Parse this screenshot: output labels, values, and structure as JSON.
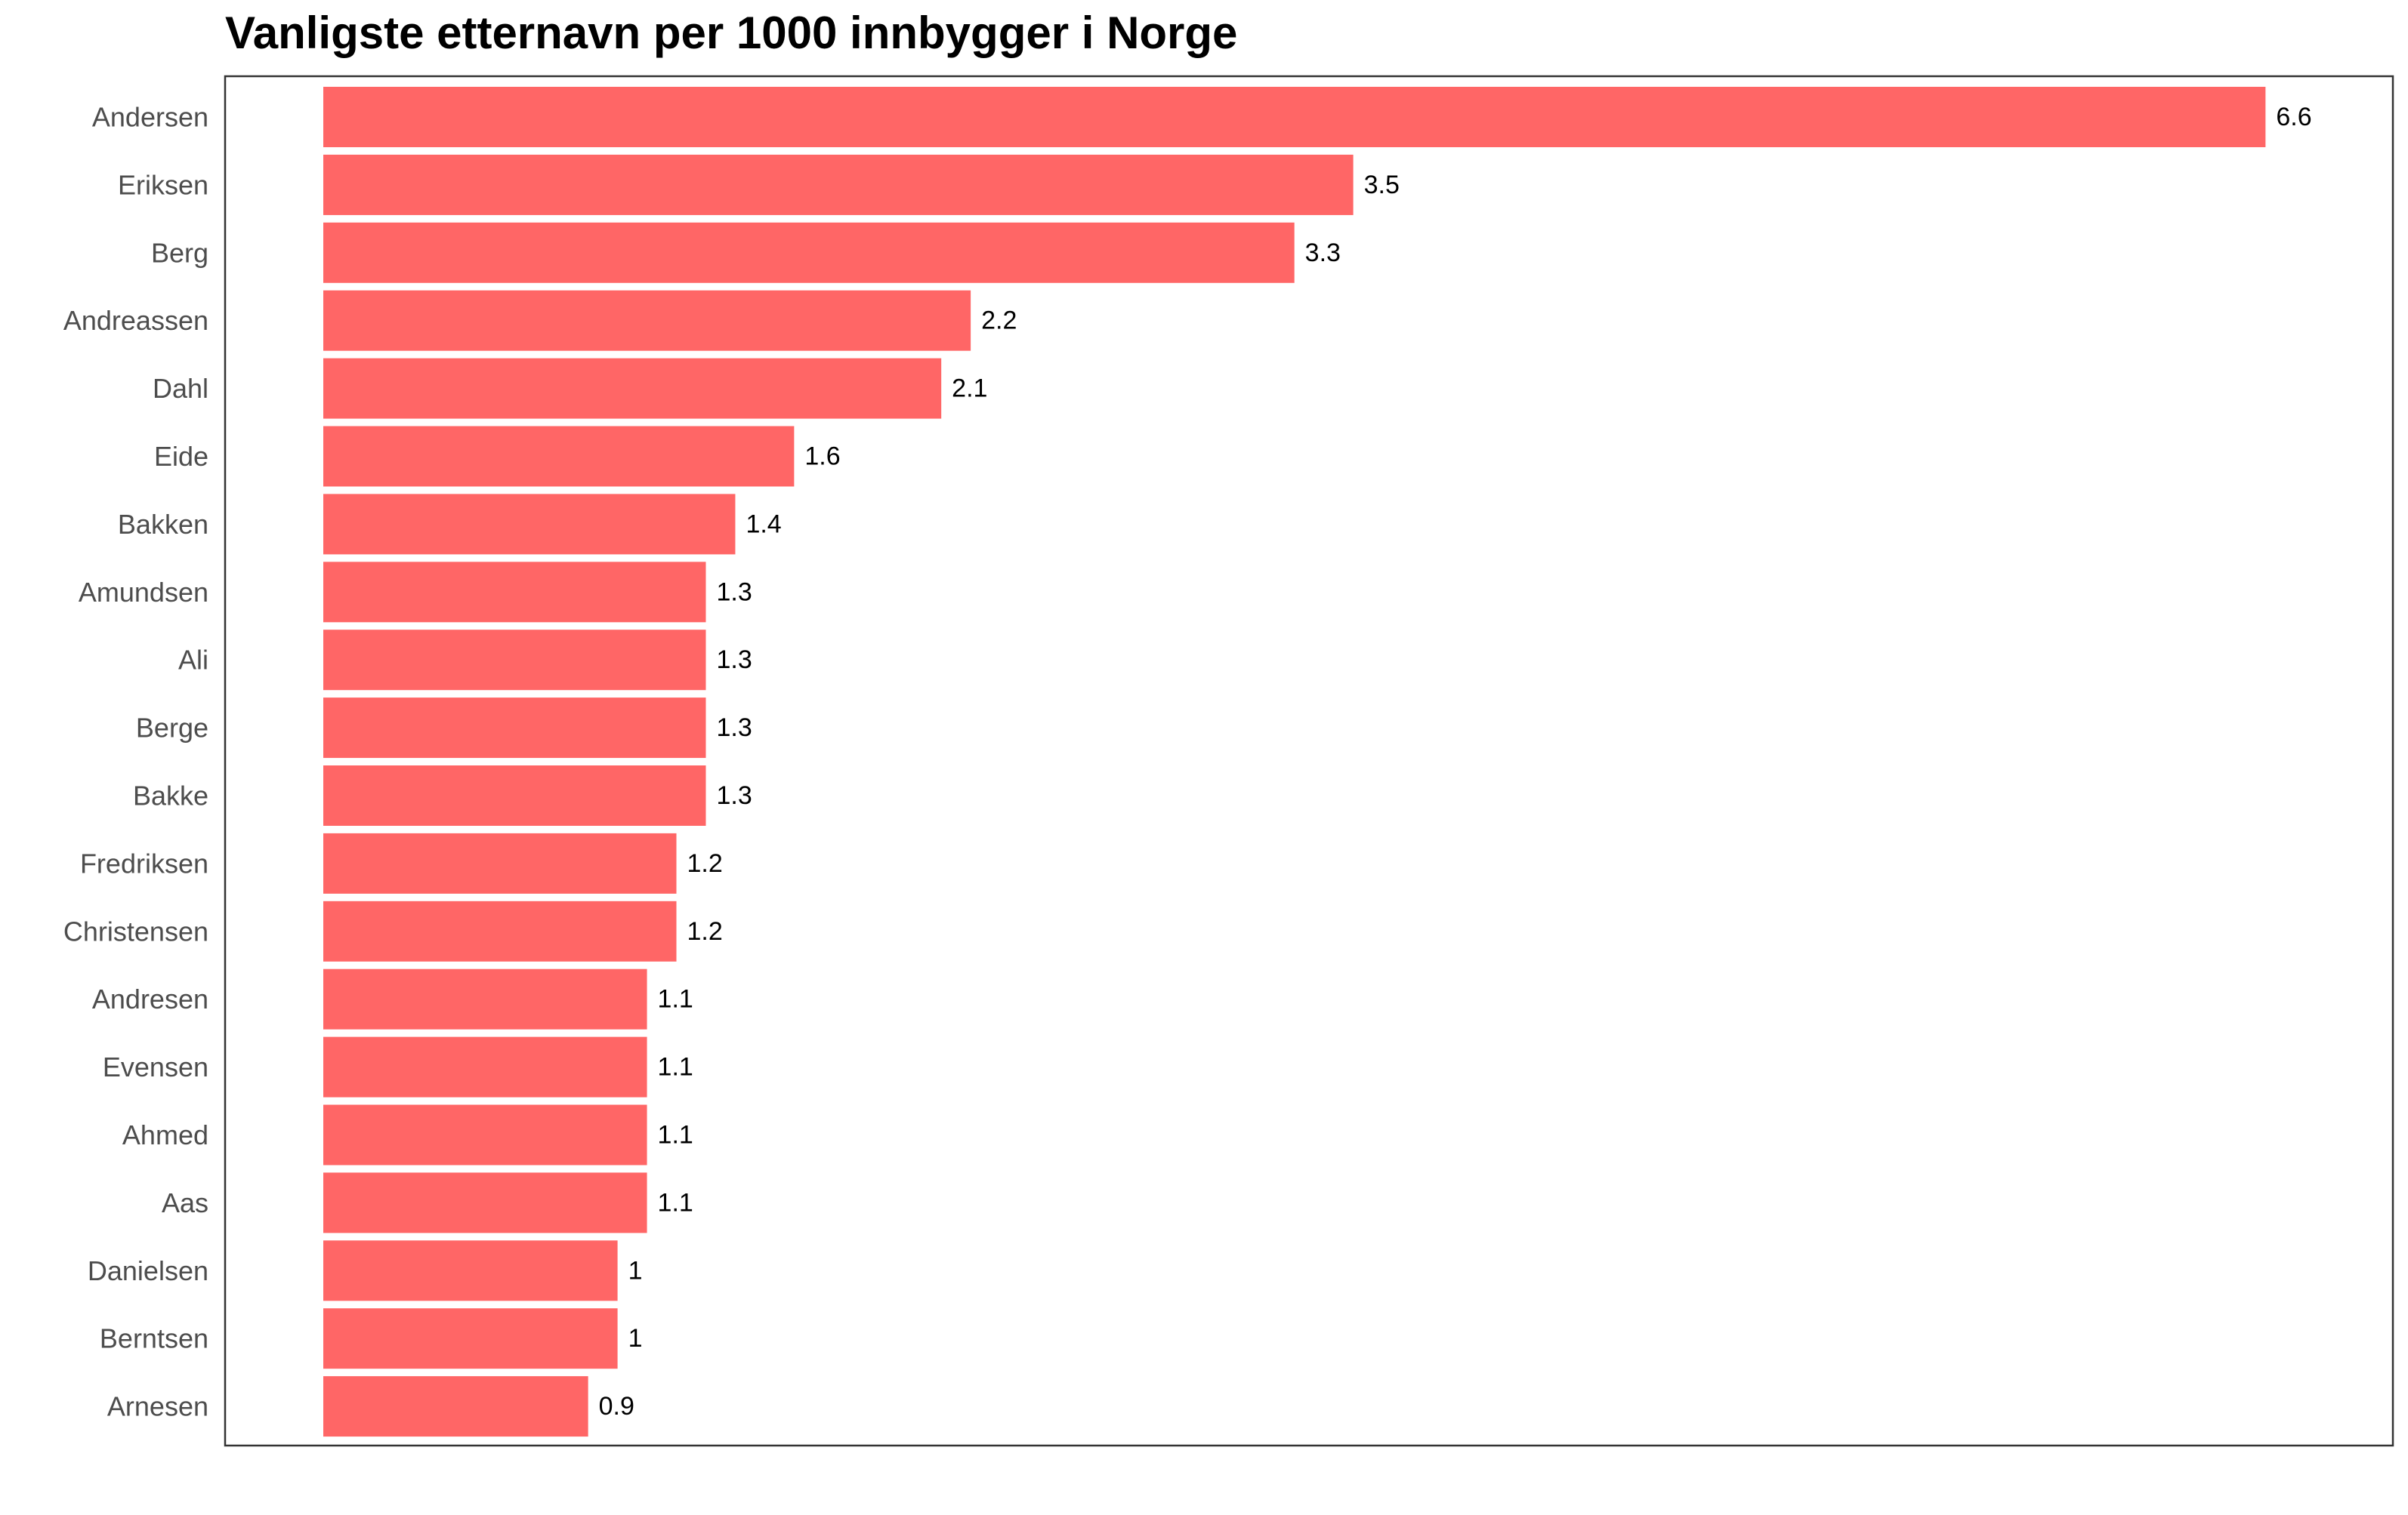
{
  "chart_data": {
    "type": "bar",
    "orientation": "horizontal",
    "title": "Vanligste etternavn per 1000 innbygger i Norge",
    "xlabel": "",
    "ylabel": "",
    "categories": [
      "Andersen",
      "Eriksen",
      "Berg",
      "Andreassen",
      "Dahl",
      "Eide",
      "Bakken",
      "Amundsen",
      "Ali",
      "Berge",
      "Bakke",
      "Fredriksen",
      "Christensen",
      "Andresen",
      "Evensen",
      "Ahmed",
      "Aas",
      "Danielsen",
      "Berntsen",
      "Arnesen"
    ],
    "values": [
      6.6,
      3.5,
      3.3,
      2.2,
      2.1,
      1.6,
      1.4,
      1.3,
      1.3,
      1.3,
      1.3,
      1.2,
      1.2,
      1.1,
      1.1,
      1.1,
      1.1,
      1,
      1,
      0.9
    ],
    "value_labels": [
      "6.6",
      "3.5",
      "3.3",
      "2.2",
      "2.1",
      "1.6",
      "1.4",
      "1.3",
      "1.3",
      "1.3",
      "1.3",
      "1.2",
      "1.2",
      "1.1",
      "1.1",
      "1.1",
      "1.1",
      "1",
      "1",
      "0.9"
    ],
    "xlim": [
      0,
      7.15
    ],
    "grid": false,
    "legend": "none",
    "bar_color": "#ff6666",
    "panel_border_color": "#333333"
  }
}
